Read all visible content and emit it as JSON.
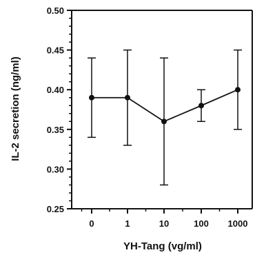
{
  "chart_data": {
    "type": "line",
    "title": "",
    "xlabel": "YH-Tang (vg/ml)",
    "ylabel": "IL-2 secretion (ng/ml)",
    "categories": [
      "0",
      "1",
      "10",
      "100",
      "1000"
    ],
    "x_scale": "categorical",
    "ylim": [
      0.25,
      0.5
    ],
    "yticks": [
      "0.25",
      "0.30",
      "0.35",
      "0.40",
      "0.45",
      "0.50"
    ],
    "series": [
      {
        "values": [
          0.39,
          0.39,
          0.36,
          0.38,
          0.4
        ],
        "error_high": [
          0.44,
          0.45,
          0.44,
          0.4,
          0.45
        ],
        "error_low": [
          0.34,
          0.33,
          0.28,
          0.36,
          0.35
        ]
      }
    ],
    "grid": false,
    "legend": "none",
    "colors": {
      "line": "#111111",
      "marker": "#111111",
      "axis": "#111111"
    }
  }
}
